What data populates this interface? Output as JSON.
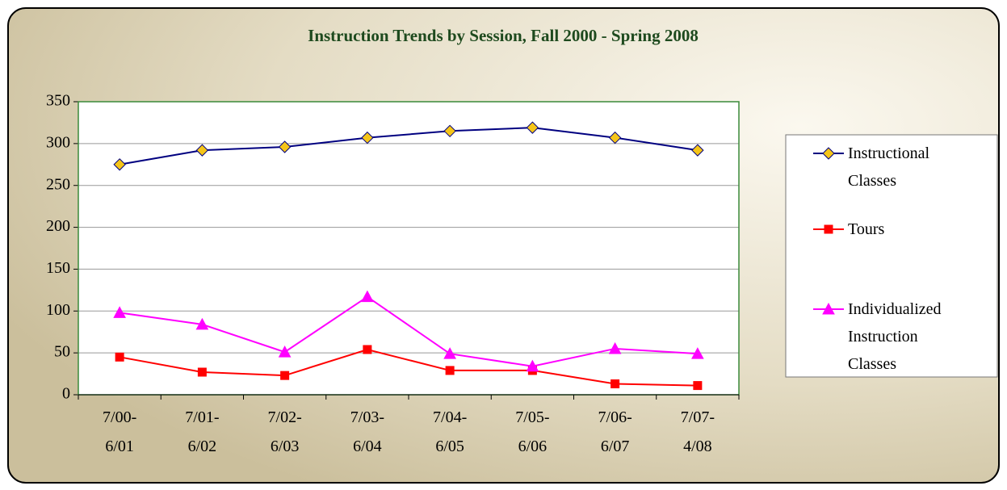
{
  "chart_data": {
    "type": "line",
    "title": "Instruction Trends by Session, Fall 2000 - Spring 2008",
    "categories": [
      [
        "7/00-",
        "6/01"
      ],
      [
        "7/01-",
        "6/02"
      ],
      [
        "7/02-",
        "6/03"
      ],
      [
        "7/03-",
        "6/04"
      ],
      [
        "7/04-",
        "6/05"
      ],
      [
        "7/05-",
        "6/06"
      ],
      [
        "7/06-",
        "6/07"
      ],
      [
        "7/07-",
        "4/08"
      ]
    ],
    "series": [
      {
        "name": "Instructional Classes",
        "color": "#000080",
        "marker": "diamond",
        "marker_color": "#f5c518",
        "values": [
          275,
          292,
          296,
          307,
          315,
          319,
          307,
          292
        ]
      },
      {
        "name": "Tours",
        "color": "#ff0000",
        "marker": "square",
        "marker_color": "#ff0000",
        "values": [
          45,
          27,
          23,
          54,
          29,
          29,
          13,
          11
        ]
      },
      {
        "name": "Individualized Instruction Classes",
        "color": "#ff00ff",
        "marker": "triangle",
        "marker_color": "#ff00ff",
        "values": [
          98,
          84,
          51,
          117,
          49,
          34,
          55,
          49
        ]
      }
    ],
    "ylim": [
      0,
      350
    ],
    "yticks": [
      0,
      50,
      100,
      150,
      200,
      250,
      300,
      350
    ],
    "grid": true,
    "legend": "right"
  }
}
